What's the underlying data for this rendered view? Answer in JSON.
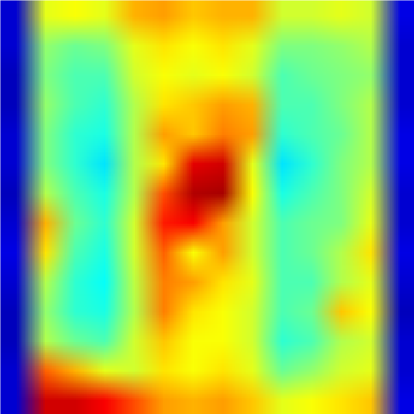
{
  "chart_data": {
    "type": "heatmap",
    "tick_labels": false,
    "zlim": [
      0,
      100
    ],
    "cells": [
      [
        8,
        60,
        62,
        60,
        70,
        72,
        68,
        70,
        70,
        58,
        58,
        60,
        58,
        10
      ],
      [
        8,
        52,
        48,
        50,
        60,
        65,
        62,
        65,
        60,
        50,
        50,
        52,
        55,
        8
      ],
      [
        6,
        50,
        45,
        45,
        58,
        62,
        60,
        62,
        58,
        45,
        48,
        50,
        52,
        8
      ],
      [
        6,
        52,
        45,
        42,
        55,
        65,
        68,
        72,
        70,
        45,
        45,
        50,
        55,
        8
      ],
      [
        8,
        50,
        42,
        40,
        55,
        72,
        68,
        75,
        72,
        42,
        45,
        48,
        55,
        10
      ],
      [
        8,
        50,
        42,
        35,
        55,
        65,
        90,
        92,
        60,
        35,
        42,
        50,
        55,
        10
      ],
      [
        6,
        55,
        45,
        40,
        55,
        80,
        95,
        96,
        62,
        40,
        45,
        50,
        58,
        8
      ],
      [
        8,
        70,
        48,
        42,
        58,
        85,
        88,
        72,
        58,
        45,
        48,
        50,
        60,
        8
      ],
      [
        10,
        65,
        45,
        40,
        58,
        78,
        62,
        72,
        58,
        45,
        48,
        55,
        65,
        10
      ],
      [
        8,
        55,
        42,
        38,
        56,
        75,
        72,
        65,
        60,
        45,
        45,
        55,
        60,
        8
      ],
      [
        6,
        52,
        42,
        40,
        55,
        75,
        65,
        62,
        58,
        45,
        48,
        68,
        62,
        6
      ],
      [
        6,
        55,
        48,
        45,
        58,
        68,
        62,
        62,
        58,
        42,
        45,
        55,
        58,
        8
      ],
      [
        8,
        78,
        70,
        60,
        58,
        65,
        62,
        65,
        60,
        48,
        52,
        58,
        60,
        8
      ],
      [
        8,
        92,
        92,
        88,
        80,
        72,
        70,
        72,
        68,
        60,
        62,
        65,
        68,
        10
      ]
    ]
  }
}
